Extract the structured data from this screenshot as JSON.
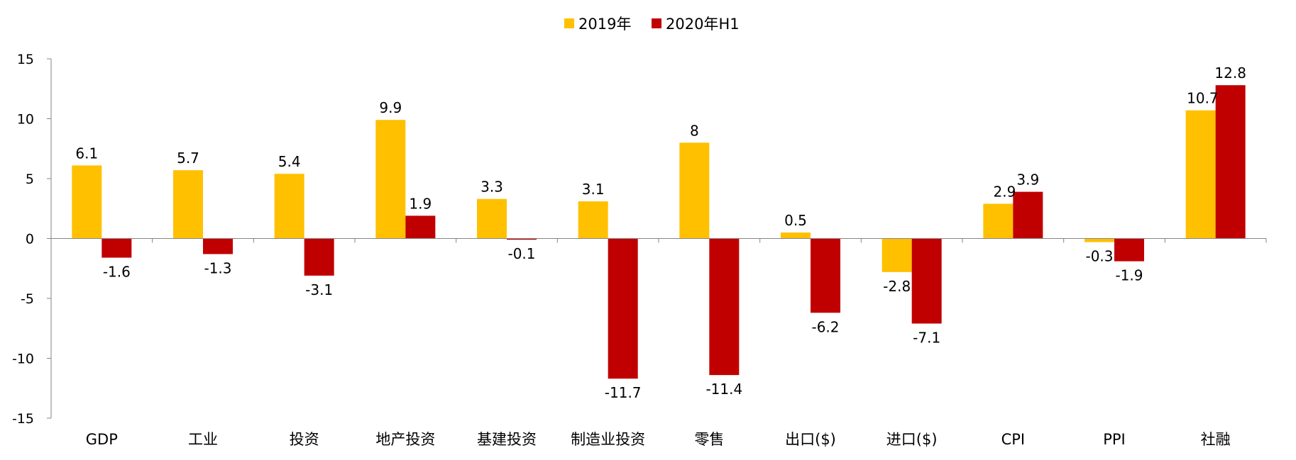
{
  "chart_data": {
    "type": "bar",
    "title": "",
    "xlabel": "",
    "ylabel": "",
    "ylim": [
      -15,
      15
    ],
    "yticks": [
      15,
      10,
      5,
      0,
      -5,
      -10,
      -15
    ],
    "grid": false,
    "legend_position": "top-center",
    "categories": [
      "GDP",
      "工业",
      "投资",
      "地产投资",
      "基建投资",
      "制造业投资",
      "零售",
      "出口($)",
      "进口($)",
      "CPI",
      "PPI",
      "社融"
    ],
    "series": [
      {
        "name": "2019年",
        "color": "#FFC000",
        "values": [
          6.1,
          5.7,
          5.4,
          9.9,
          3.3,
          3.1,
          8,
          0.5,
          -2.8,
          2.9,
          -0.3,
          10.7
        ],
        "labels": [
          "6.1",
          "5.7",
          "5.4",
          "9.9",
          "3.3",
          "3.1",
          "8",
          "0.5",
          "-2.8",
          "2.9",
          "-0.3",
          "10.7"
        ]
      },
      {
        "name": "2020年H1",
        "color": "#C00000",
        "values": [
          -1.6,
          -1.3,
          -3.1,
          1.9,
          -0.1,
          -11.7,
          -11.4,
          -6.2,
          -7.1,
          3.9,
          -1.9,
          12.8
        ],
        "labels": [
          "-1.6",
          "-1.3",
          "-3.1",
          "1.9",
          "-0.1",
          "-11.7",
          "-11.4",
          "-6.2",
          "-7.1",
          "3.9",
          "-1.9",
          "12.8"
        ]
      }
    ]
  }
}
